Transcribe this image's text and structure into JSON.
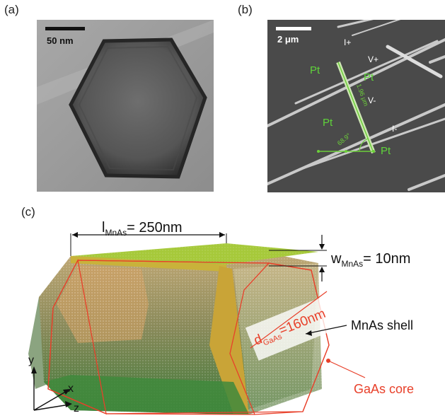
{
  "panel_a": {
    "label": "(a)",
    "scale_bar": "50 nm"
  },
  "panel_b": {
    "label": "(b)",
    "scale_bar": "2 μm",
    "contacts": [
      "Pt",
      "Pt",
      "Pt",
      "Pt"
    ],
    "terminals": {
      "i_plus": "I+",
      "v_plus": "V+",
      "v_minus": "V-",
      "i_minus": "I-"
    },
    "length_label": "1.96 μm",
    "angle_label": "68.9°"
  },
  "panel_c": {
    "label": "(c)",
    "l_label": "l",
    "l_sub": "MnAs",
    "l_value": "= 250nm",
    "w_label": "w",
    "w_sub": "MnAs",
    "w_value": "= 10nm",
    "d_label": "d",
    "d_sub": "GaAs",
    "d_value": "=160nm",
    "shell_label": "MnAs shell",
    "core_label": "GaAs core",
    "axes": {
      "y": "y",
      "x": "x",
      "z": "z"
    },
    "colors": {
      "core": "#e8402a",
      "shell_top": "#a6c93a",
      "shell_gold": "#c9a437",
      "body_green": "#4f7e3c"
    }
  }
}
